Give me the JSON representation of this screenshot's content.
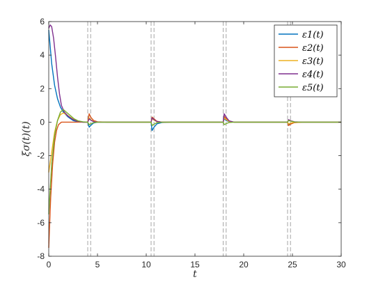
{
  "chart_data": {
    "type": "line",
    "xlabel": "t",
    "ylabel": "ξσ(t)(t)",
    "xlim": [
      0,
      30
    ],
    "ylim": [
      -8,
      6
    ],
    "xticks": [
      0,
      5,
      10,
      15,
      20,
      25,
      30
    ],
    "yticks": [
      -8,
      -6,
      -4,
      -2,
      0,
      2,
      4,
      6
    ],
    "grid": false,
    "legend_position": "top-right",
    "switching_times": [
      4.0,
      4.3,
      10.5,
      10.8,
      17.9,
      18.2,
      24.5,
      24.8
    ],
    "series": [
      {
        "name": "ε1(t)",
        "color": "#0072BD",
        "x": [
          0,
          0.3,
          0.6,
          0.9,
          1.2,
          1.5,
          2.0,
          2.5,
          3.0,
          3.5,
          4.0,
          4.15,
          4.3,
          4.6,
          5.0,
          6.0,
          8.0,
          10.5,
          10.6,
          10.8,
          11.1,
          11.6,
          12.5,
          14.0,
          17.9,
          18.0,
          18.2,
          18.5,
          19.0,
          20.0,
          22.0,
          24.5,
          24.6,
          24.8,
          25.2,
          26.0,
          28.0,
          30.0
        ],
        "values": [
          5.5,
          3.5,
          2.2,
          1.4,
          0.9,
          0.6,
          0.3,
          0.1,
          0.02,
          0.0,
          0.0,
          -0.3,
          -0.2,
          -0.05,
          0.0,
          0.0,
          0.0,
          0.0,
          -0.5,
          -0.3,
          -0.1,
          -0.02,
          0.0,
          0.0,
          0.0,
          0.2,
          0.1,
          0.03,
          0.0,
          0.0,
          0.0,
          0.0,
          -0.15,
          -0.08,
          -0.02,
          0.0,
          0.0,
          0.0
        ]
      },
      {
        "name": "ε2(t)",
        "color": "#D95319",
        "x": [
          0,
          0.2,
          0.4,
          0.6,
          0.8,
          1.0,
          1.3,
          1.6,
          2.0,
          2.5,
          3.0,
          4.0,
          4.15,
          4.3,
          4.6,
          5.0,
          6.0,
          8.0,
          10.5,
          10.6,
          10.8,
          11.1,
          11.6,
          12.5,
          14.0,
          17.9,
          18.0,
          18.2,
          18.5,
          19.0,
          20.0,
          22.0,
          24.5,
          24.6,
          24.8,
          25.2,
          26.0,
          28.0,
          30.0
        ],
        "values": [
          -7.5,
          -4.5,
          -2.5,
          -1.2,
          -0.5,
          -0.15,
          0.0,
          0.0,
          0.0,
          0.0,
          0.0,
          0.0,
          0.5,
          0.3,
          0.1,
          0.02,
          0.0,
          0.0,
          0.0,
          0.3,
          0.2,
          0.05,
          0.0,
          0.0,
          0.0,
          0.0,
          0.35,
          0.2,
          0.05,
          0.0,
          0.0,
          0.0,
          0.0,
          -0.2,
          -0.12,
          -0.03,
          0.0,
          0.0,
          0.0
        ]
      },
      {
        "name": "ε3(t)",
        "color": "#EDB120",
        "x": [
          0,
          0.3,
          0.6,
          0.9,
          1.2,
          1.5,
          1.8,
          2.2,
          2.6,
          3.0,
          3.5,
          4.0,
          4.15,
          4.3,
          4.6,
          5.0,
          6.0,
          8.0,
          10.5,
          10.6,
          10.8,
          11.1,
          11.6,
          12.5,
          14.0,
          17.9,
          18.0,
          18.2,
          18.5,
          19.0,
          20.0,
          22.0,
          24.5,
          24.6,
          24.8,
          25.2,
          26.0,
          28.0,
          30.0
        ],
        "values": [
          -3.0,
          -1.8,
          -0.6,
          0.1,
          0.45,
          0.55,
          0.45,
          0.3,
          0.15,
          0.05,
          0.0,
          0.0,
          0.25,
          0.15,
          0.05,
          0.0,
          0.0,
          0.0,
          0.0,
          0.2,
          0.12,
          0.03,
          0.0,
          0.0,
          0.0,
          0.0,
          0.25,
          0.15,
          0.04,
          0.0,
          0.0,
          0.0,
          0.0,
          -0.1,
          -0.06,
          -0.01,
          0.0,
          0.0,
          0.0
        ]
      },
      {
        "name": "ε4(t)",
        "color": "#7E2F8E",
        "x": [
          0,
          0.15,
          0.3,
          0.5,
          0.7,
          0.9,
          1.1,
          1.3,
          1.6,
          2.0,
          2.5,
          3.0,
          3.5,
          4.0,
          4.15,
          4.3,
          4.6,
          5.0,
          6.0,
          8.0,
          10.5,
          10.6,
          10.8,
          11.1,
          11.6,
          12.5,
          14.0,
          17.9,
          18.0,
          18.2,
          18.5,
          19.0,
          20.0,
          22.0,
          24.5,
          24.6,
          24.8,
          25.2,
          26.0,
          28.0,
          30.0
        ],
        "values": [
          5.6,
          5.8,
          5.7,
          5.0,
          3.9,
          2.7,
          1.7,
          1.0,
          0.6,
          0.35,
          0.15,
          0.05,
          0.0,
          0.0,
          0.2,
          0.12,
          0.03,
          0.0,
          0.0,
          0.0,
          0.0,
          0.25,
          0.15,
          0.04,
          0.0,
          0.0,
          0.0,
          0.0,
          0.5,
          0.3,
          0.08,
          0.0,
          0.0,
          0.0,
          0.0,
          0.15,
          0.09,
          0.02,
          0.0,
          0.0,
          0.0
        ]
      },
      {
        "name": "ε5(t)",
        "color": "#77AC30",
        "x": [
          0,
          0.3,
          0.6,
          0.9,
          1.2,
          1.5,
          1.8,
          2.2,
          2.6,
          3.0,
          3.5,
          4.0,
          4.15,
          4.3,
          4.6,
          5.0,
          6.0,
          8.0,
          10.5,
          10.6,
          10.8,
          11.1,
          11.6,
          12.5,
          14.0,
          17.9,
          18.0,
          18.2,
          18.5,
          19.0,
          20.0,
          22.0,
          24.5,
          24.6,
          24.8,
          25.2,
          26.0,
          28.0,
          30.0
        ],
        "values": [
          -5.5,
          -2.5,
          -0.8,
          0.1,
          0.6,
          0.75,
          0.6,
          0.4,
          0.2,
          0.08,
          0.02,
          0.0,
          -0.15,
          -0.1,
          -0.03,
          0.0,
          0.0,
          0.0,
          0.0,
          -0.2,
          -0.12,
          -0.03,
          0.0,
          0.0,
          0.0,
          0.0,
          -0.15,
          -0.09,
          -0.02,
          0.0,
          0.0,
          0.0,
          0.0,
          0.1,
          0.06,
          0.01,
          0.0,
          0.0,
          0.0
        ]
      }
    ]
  }
}
